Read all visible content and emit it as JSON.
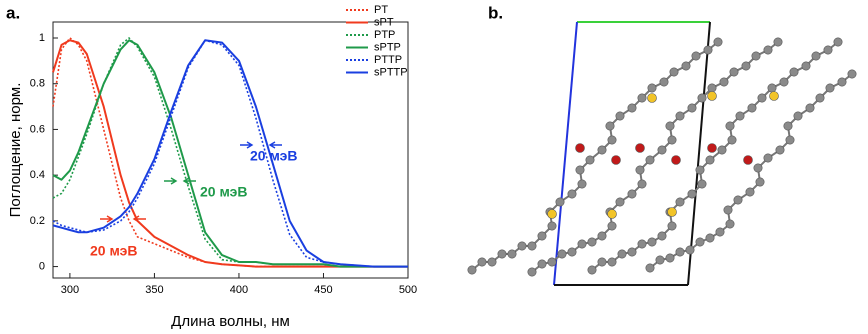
{
  "panel_labels": [
    "a.",
    "b."
  ],
  "chart_data": {
    "type": "line",
    "xlabel": "Длина волны, нм",
    "ylabel": "Поглощение, норм.",
    "xlim": [
      290,
      500
    ],
    "ylim": [
      -0.05,
      1.07
    ],
    "xticks": [
      300,
      350,
      400,
      450,
      500
    ],
    "yticks": [
      0,
      0.2,
      0.4,
      0.6,
      0.8,
      1
    ],
    "legend": "upper right",
    "x": [
      290,
      295,
      300,
      305,
      310,
      320,
      330,
      335,
      340,
      350,
      360,
      370,
      380,
      390,
      400,
      410,
      420,
      430,
      440,
      450,
      460,
      480,
      500
    ],
    "series": [
      {
        "name": "PT",
        "color": "#f03a1e",
        "linestyle": "dotted",
        "values": [
          0.7,
          0.95,
          1.0,
          0.97,
          0.9,
          0.6,
          0.3,
          0.2,
          0.13,
          0.1,
          0.07,
          0.04,
          0.02,
          0.01,
          0.005,
          0,
          0,
          0,
          0,
          0,
          0,
          0,
          0
        ]
      },
      {
        "name": "sPT",
        "color": "#f03a1e",
        "linestyle": "solid",
        "values": [
          0.85,
          0.97,
          0.99,
          0.98,
          0.93,
          0.7,
          0.4,
          0.28,
          0.2,
          0.13,
          0.09,
          0.05,
          0.02,
          0.01,
          0.005,
          0,
          0,
          0,
          0,
          0,
          0,
          0,
          0
        ]
      },
      {
        "name": "PTP",
        "color": "#1f9a4a",
        "linestyle": "dotted",
        "values": [
          0.3,
          0.32,
          0.38,
          0.48,
          0.58,
          0.8,
          0.97,
          1.0,
          0.96,
          0.83,
          0.6,
          0.35,
          0.12,
          0.03,
          0.02,
          0.02,
          0.01,
          0.01,
          0.01,
          0.01,
          0,
          0,
          0
        ]
      },
      {
        "name": "sPTP",
        "color": "#1f9a4a",
        "linestyle": "solid",
        "values": [
          0.4,
          0.38,
          0.42,
          0.5,
          0.6,
          0.8,
          0.95,
          0.99,
          0.97,
          0.85,
          0.65,
          0.4,
          0.15,
          0.05,
          0.02,
          0.02,
          0.01,
          0.01,
          0.01,
          0.01,
          0,
          0,
          0
        ]
      },
      {
        "name": "PTTP",
        "color": "#1a3fe0",
        "linestyle": "dotted",
        "values": [
          0.2,
          0.18,
          0.17,
          0.16,
          0.15,
          0.16,
          0.2,
          0.24,
          0.3,
          0.45,
          0.66,
          0.87,
          0.99,
          0.97,
          0.88,
          0.65,
          0.38,
          0.14,
          0.04,
          0.02,
          0.01,
          0,
          0
        ]
      },
      {
        "name": "sPTTP",
        "color": "#1a3fe0",
        "linestyle": "solid",
        "values": [
          0.18,
          0.17,
          0.16,
          0.15,
          0.15,
          0.17,
          0.22,
          0.26,
          0.32,
          0.47,
          0.68,
          0.88,
          0.99,
          0.98,
          0.9,
          0.7,
          0.45,
          0.2,
          0.07,
          0.02,
          0.01,
          0,
          0
        ]
      }
    ],
    "annotations": [
      {
        "text": "20 мэВ",
        "color": "#f03a1e"
      },
      {
        "text": "20 мэВ",
        "color": "#1f9a4a"
      },
      {
        "text": "20 мэВ",
        "color": "#1a3fe0"
      }
    ]
  }
}
